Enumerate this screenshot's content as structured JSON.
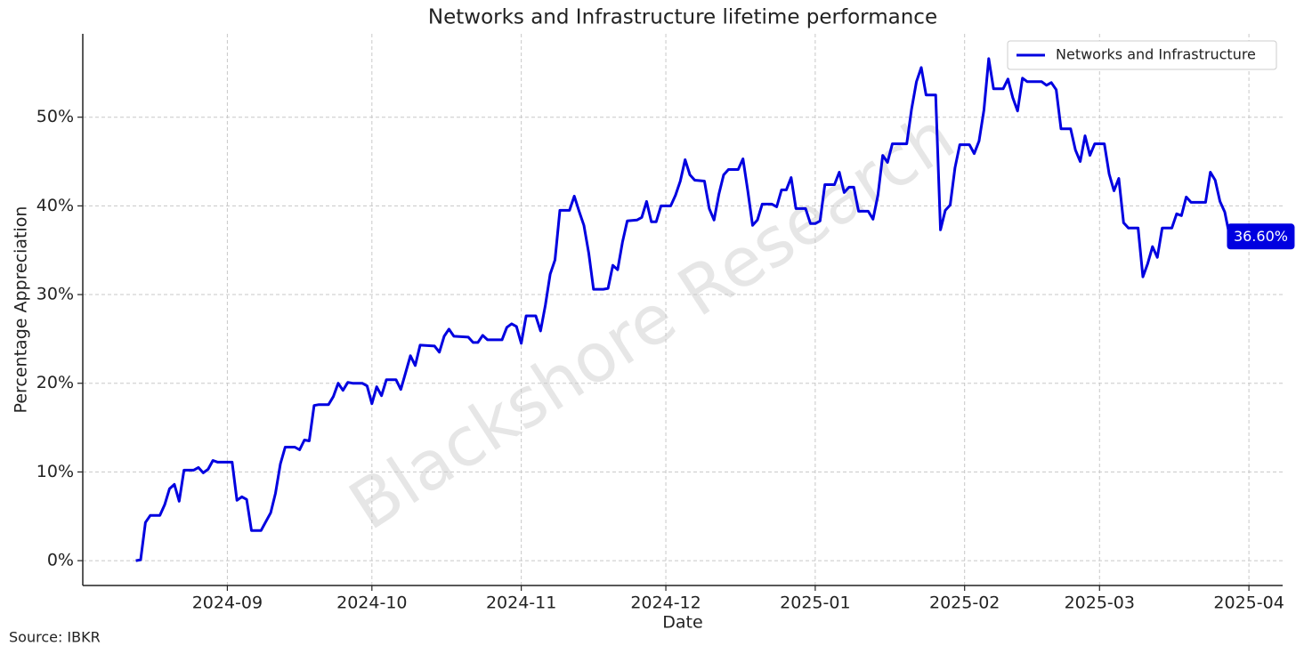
{
  "chart_data": {
    "type": "line",
    "title": "Networks and Infrastructure lifetime performance",
    "xlabel": "Date",
    "ylabel": "Percentage Appreciation",
    "source": "Source: IBKR",
    "watermark": "Blackshore Research",
    "legend": "upper right",
    "grid": true,
    "xlim": [
      "2024-08-02",
      "2025-04-08"
    ],
    "ylim": [
      -2.8,
      59.4
    ],
    "xticks": [
      {
        "value": "2024-09-01",
        "label": "2024-09"
      },
      {
        "value": "2024-10-01",
        "label": "2024-10"
      },
      {
        "value": "2024-11-01",
        "label": "2024-11"
      },
      {
        "value": "2024-12-01",
        "label": "2024-12"
      },
      {
        "value": "2025-01-01",
        "label": "2025-01"
      },
      {
        "value": "2025-02-01",
        "label": "2025-02"
      },
      {
        "value": "2025-03-01",
        "label": "2025-03"
      },
      {
        "value": "2025-04-01",
        "label": "2025-04"
      }
    ],
    "yticks": [
      {
        "value": 0,
        "label": "0%"
      },
      {
        "value": 10,
        "label": "10%"
      },
      {
        "value": 20,
        "label": "20%"
      },
      {
        "value": 30,
        "label": "30%"
      },
      {
        "value": 40,
        "label": "40%"
      },
      {
        "value": 50,
        "label": "50%"
      }
    ],
    "x": [
      "2024-08-13",
      "2024-08-14",
      "2024-08-15",
      "2024-08-16",
      "2024-08-18",
      "2024-08-19",
      "2024-08-20",
      "2024-08-21",
      "2024-08-22",
      "2024-08-23",
      "2024-08-25",
      "2024-08-26",
      "2024-08-27",
      "2024-08-28",
      "2024-08-29",
      "2024-08-30",
      "2024-09-02",
      "2024-09-03",
      "2024-09-04",
      "2024-09-05",
      "2024-09-06",
      "2024-09-08",
      "2024-09-09",
      "2024-09-10",
      "2024-09-11",
      "2024-09-12",
      "2024-09-13",
      "2024-09-15",
      "2024-09-16",
      "2024-09-17",
      "2024-09-18",
      "2024-09-19",
      "2024-09-20",
      "2024-09-22",
      "2024-09-23",
      "2024-09-24",
      "2024-09-25",
      "2024-09-26",
      "2024-09-27",
      "2024-09-29",
      "2024-09-30",
      "2024-10-01",
      "2024-10-02",
      "2024-10-03",
      "2024-10-04",
      "2024-10-06",
      "2024-10-07",
      "2024-10-08",
      "2024-10-09",
      "2024-10-10",
      "2024-10-11",
      "2024-10-14",
      "2024-10-15",
      "2024-10-16",
      "2024-10-17",
      "2024-10-18",
      "2024-10-21",
      "2024-10-22",
      "2024-10-23",
      "2024-10-24",
      "2024-10-25",
      "2024-10-28",
      "2024-10-29",
      "2024-10-30",
      "2024-10-31",
      "2024-11-01",
      "2024-11-02",
      "2024-11-04",
      "2024-11-05",
      "2024-11-06",
      "2024-11-07",
      "2024-11-08",
      "2024-11-09",
      "2024-11-11",
      "2024-11-12",
      "2024-11-13",
      "2024-11-14",
      "2024-11-15",
      "2024-11-16",
      "2024-11-18",
      "2024-11-19",
      "2024-11-20",
      "2024-11-21",
      "2024-11-22",
      "2024-11-23",
      "2024-11-25",
      "2024-11-26",
      "2024-11-27",
      "2024-11-28",
      "2024-11-29",
      "2024-11-30",
      "2024-12-02",
      "2024-12-03",
      "2024-12-04",
      "2024-12-05",
      "2024-12-06",
      "2024-12-07",
      "2024-12-09",
      "2024-12-10",
      "2024-12-11",
      "2024-12-12",
      "2024-12-13",
      "2024-12-14",
      "2024-12-16",
      "2024-12-17",
      "2024-12-18",
      "2024-12-19",
      "2024-12-20",
      "2024-12-21",
      "2024-12-23",
      "2024-12-24",
      "2024-12-25",
      "2024-12-26",
      "2024-12-27",
      "2024-12-28",
      "2024-12-30",
      "2024-12-31",
      "2025-01-01",
      "2025-01-02",
      "2025-01-03",
      "2025-01-05",
      "2025-01-06",
      "2025-01-07",
      "2025-01-08",
      "2025-01-09",
      "2025-01-10",
      "2025-01-12",
      "2025-01-13",
      "2025-01-14",
      "2025-01-15",
      "2025-01-16",
      "2025-01-17",
      "2025-01-20",
      "2025-01-21",
      "2025-01-22",
      "2025-01-23",
      "2025-01-24",
      "2025-01-26",
      "2025-01-27",
      "2025-01-28",
      "2025-01-29",
      "2025-01-30",
      "2025-01-31",
      "2025-02-02",
      "2025-02-03",
      "2025-02-04",
      "2025-02-05",
      "2025-02-06",
      "2025-02-07",
      "2025-02-09",
      "2025-02-10",
      "2025-02-11",
      "2025-02-12",
      "2025-02-13",
      "2025-02-14",
      "2025-02-17",
      "2025-02-18",
      "2025-02-19",
      "2025-02-20",
      "2025-02-21",
      "2025-02-23",
      "2025-02-24",
      "2025-02-25",
      "2025-02-26",
      "2025-02-27",
      "2025-02-28",
      "2025-03-02",
      "2025-03-03",
      "2025-03-04",
      "2025-03-05",
      "2025-03-06",
      "2025-03-07",
      "2025-03-09",
      "2025-03-10",
      "2025-03-11",
      "2025-03-12",
      "2025-03-13",
      "2025-03-14",
      "2025-03-16",
      "2025-03-17",
      "2025-03-18",
      "2025-03-19",
      "2025-03-20",
      "2025-03-23",
      "2025-03-24",
      "2025-03-25",
      "2025-03-26",
      "2025-03-27",
      "2025-03-28"
    ],
    "series": [
      {
        "name": "Networks and Infrastructure",
        "color": "#0000e0",
        "values": [
          0,
          0.1,
          4.3,
          5.1,
          5.1,
          6.3,
          8.1,
          8.6,
          6.7,
          10.2,
          10.2,
          10.5,
          9.9,
          10.3,
          11.3,
          11.1,
          11.1,
          6.8,
          7.2,
          6.9,
          3.4,
          3.4,
          4.4,
          5.4,
          7.6,
          10.9,
          12.8,
          12.8,
          12.5,
          13.6,
          13.5,
          17.5,
          17.6,
          17.6,
          18.5,
          20,
          19.2,
          20.1,
          20,
          20,
          19.7,
          17.7,
          19.6,
          18.6,
          20.4,
          20.4,
          19.3,
          21.2,
          23.1,
          22,
          24.3,
          24.2,
          23.5,
          25.3,
          26.1,
          25.3,
          25.2,
          24.6,
          24.6,
          25.4,
          24.9,
          24.9,
          26.3,
          26.7,
          26.4,
          24.5,
          27.6,
          27.6,
          25.9,
          28.8,
          32.3,
          33.9,
          39.5,
          39.5,
          41.1,
          39.4,
          37.8,
          34.7,
          30.6,
          30.6,
          30.7,
          33.3,
          32.8,
          35.9,
          38.3,
          38.4,
          38.7,
          40.5,
          38.2,
          38.2,
          40,
          40,
          41.2,
          42.8,
          45.2,
          43.5,
          42.9,
          42.8,
          39.7,
          38.4,
          41.3,
          43.5,
          44.1,
          44.1,
          45.3,
          41.7,
          37.8,
          38.4,
          40.2,
          40.2,
          39.9,
          41.8,
          41.8,
          43.2,
          39.7,
          39.7,
          38,
          38,
          38.3,
          42.4,
          42.4,
          43.8,
          41.5,
          42.1,
          42.1,
          39.4,
          39.4,
          38.5,
          41.2,
          45.7,
          44.9,
          47,
          47,
          50.9,
          54,
          55.6,
          52.5,
          52.5,
          37.3,
          39.5,
          40.1,
          44.3,
          46.9,
          46.9,
          45.9,
          47.3,
          50.8,
          56.6,
          53.2,
          53.2,
          54.3,
          52.2,
          50.7,
          54.4,
          54,
          54,
          53.6,
          53.9,
          53.1,
          48.7,
          48.7,
          46.3,
          45,
          47.9,
          45.7,
          47,
          47,
          43.6,
          41.7,
          43.1,
          38.1,
          37.5,
          37.5,
          32,
          33.5,
          35.4,
          34.2,
          37.5,
          37.5,
          39.1,
          38.9,
          41,
          40.4,
          40.4,
          43.8,
          42.9,
          40.5,
          39.3,
          36.6
        ]
      }
    ],
    "annotations": [
      {
        "x": "2025-03-28",
        "value": 36.6,
        "label": "36.60%"
      }
    ]
  }
}
